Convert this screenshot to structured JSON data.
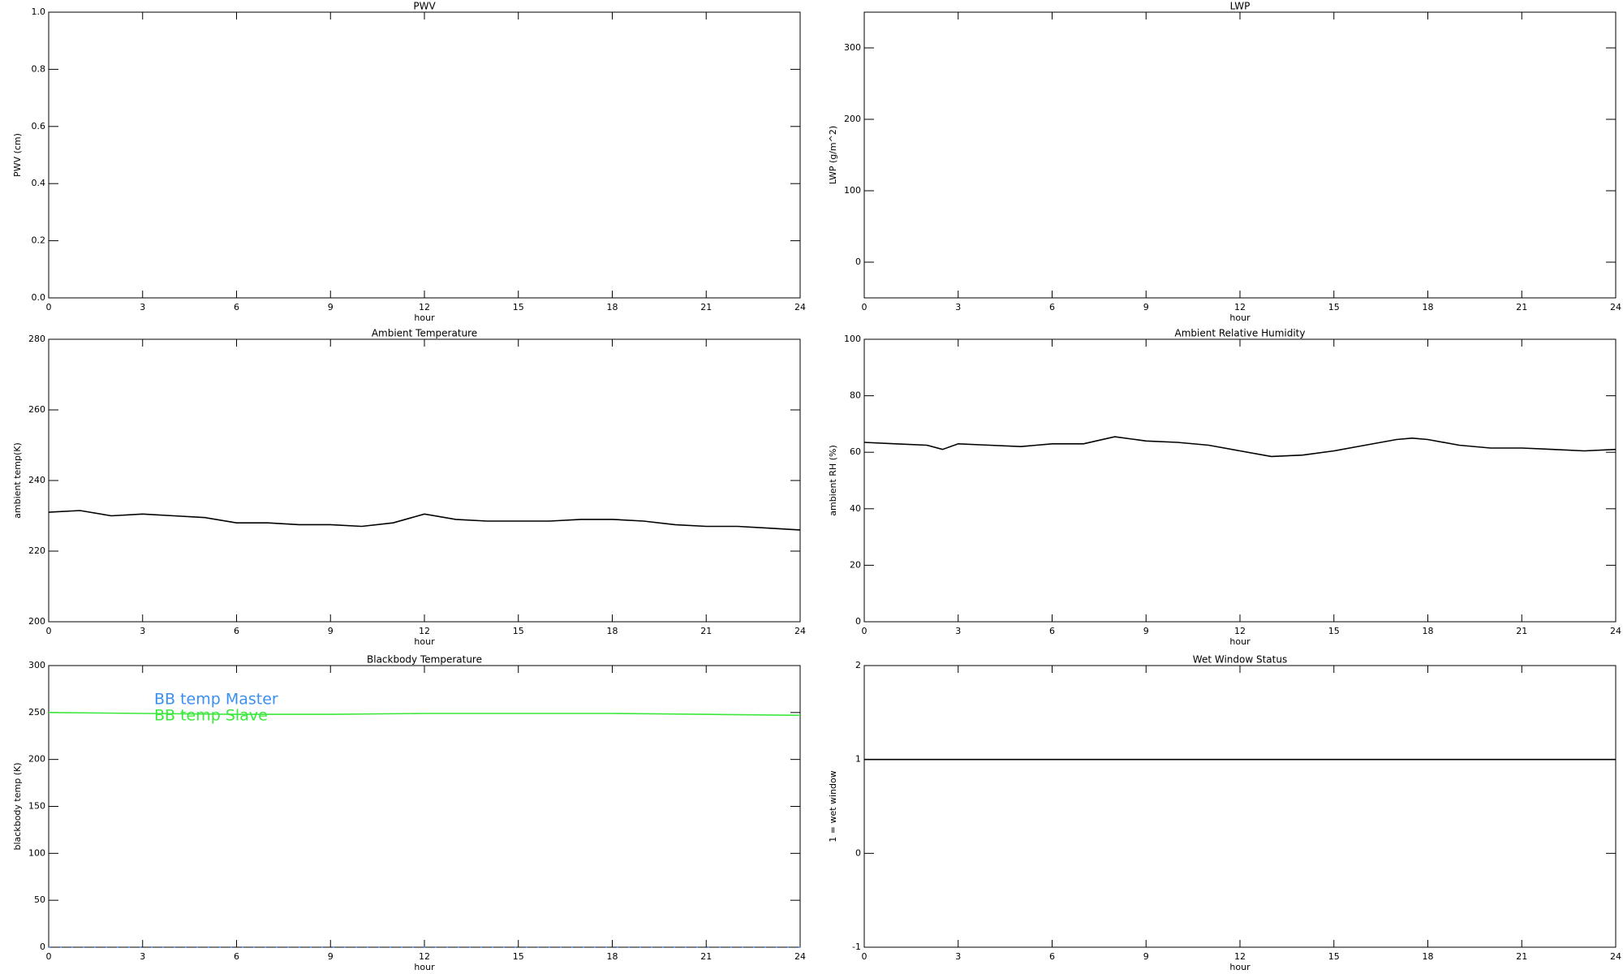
{
  "chart_data": [
    {
      "type": "line",
      "title": "PWV",
      "xlabel": "hour",
      "ylabel": "PWV (cm)",
      "xlim": [
        0,
        24
      ],
      "xticks": [
        0,
        3,
        6,
        9,
        12,
        15,
        18,
        21,
        24
      ],
      "ylim": [
        0,
        1
      ],
      "yticks": [
        {
          "value": 0,
          "label": "0.0"
        },
        0.2,
        0.4,
        0.6,
        0.8,
        {
          "value": 1,
          "label": "1.0"
        }
      ],
      "series": []
    },
    {
      "type": "line",
      "title": "LWP",
      "xlabel": "hour",
      "ylabel": "LWP (g/m^2)",
      "xlim": [
        0,
        24
      ],
      "xticks": [
        0,
        3,
        6,
        9,
        12,
        15,
        18,
        21,
        24
      ],
      "ylim": [
        -50,
        350
      ],
      "yticks": [
        0,
        100,
        200,
        300
      ],
      "series": []
    },
    {
      "type": "line",
      "title": "Ambient Temperature",
      "xlabel": "hour",
      "ylabel": "ambient temp(K)",
      "xlim": [
        0,
        24
      ],
      "xticks": [
        0,
        3,
        6,
        9,
        12,
        15,
        18,
        21,
        24
      ],
      "ylim": [
        200,
        280
      ],
      "yticks": [
        200,
        220,
        240,
        260,
        280
      ],
      "series": [
        {
          "color": "#000000",
          "x": [
            0,
            1,
            2,
            3,
            4,
            5,
            6,
            7,
            8,
            9,
            10,
            11,
            12,
            13,
            14,
            15,
            16,
            17,
            18,
            19,
            20,
            21,
            22,
            23,
            24
          ],
          "values": [
            231,
            231.5,
            230,
            230.5,
            230,
            229.5,
            228,
            228,
            227.5,
            227.5,
            227,
            228,
            230.5,
            229,
            228.5,
            228.5,
            228.5,
            229,
            229,
            228.5,
            227.5,
            227,
            227,
            226.5,
            226
          ]
        }
      ]
    },
    {
      "type": "line",
      "title": "Ambient Relative Humidity",
      "xlabel": "hour",
      "ylabel": "ambient RH (%)",
      "xlim": [
        0,
        24
      ],
      "xticks": [
        0,
        3,
        6,
        9,
        12,
        15,
        18,
        21,
        24
      ],
      "ylim": [
        0,
        100
      ],
      "yticks": [
        0,
        20,
        40,
        60,
        80,
        100
      ],
      "series": [
        {
          "color": "#000000",
          "x": [
            0,
            1,
            2,
            2.5,
            3,
            4,
            5,
            6,
            7,
            8,
            9,
            10,
            11,
            12,
            13,
            14,
            15,
            16,
            17,
            17.5,
            18,
            19,
            20,
            21,
            22,
            23,
            24
          ],
          "values": [
            63.5,
            63,
            62.5,
            61,
            63,
            62.5,
            62,
            63,
            63,
            65.5,
            64,
            63.5,
            62.5,
            60.5,
            58.5,
            59,
            60.5,
            62.5,
            64.5,
            65,
            64.5,
            62.5,
            61.5,
            61.5,
            61,
            60.5,
            61
          ]
        }
      ]
    },
    {
      "type": "line",
      "title": "Blackbody Temperature",
      "xlabel": "hour",
      "ylabel": "blackbody temp (K)",
      "xlim": [
        0,
        24
      ],
      "xticks": [
        0,
        3,
        6,
        9,
        12,
        15,
        18,
        21,
        24
      ],
      "ylim": [
        0,
        300
      ],
      "yticks": [
        0,
        50,
        100,
        150,
        200,
        250,
        300
      ],
      "legend": "upper left",
      "series": [
        {
          "name": "BB temp Master",
          "color": "#3b8ff0",
          "dash": true,
          "x": [
            0,
            24
          ],
          "values": [
            0,
            0
          ]
        },
        {
          "name": "BB temp Slave",
          "color": "#3ce83c",
          "x": [
            0,
            3,
            6,
            9,
            12,
            15,
            18,
            21,
            24
          ],
          "values": [
            250,
            249,
            248,
            248,
            249,
            249,
            249,
            248,
            247
          ]
        }
      ]
    },
    {
      "type": "line",
      "title": "Wet Window Status",
      "xlabel": "hour",
      "ylabel": "1 = wet window",
      "xlim": [
        0,
        24
      ],
      "xticks": [
        0,
        3,
        6,
        9,
        12,
        15,
        18,
        21,
        24
      ],
      "ylim": [
        -1,
        2
      ],
      "yticks": [
        -1,
        0,
        1,
        2
      ],
      "series": [
        {
          "color": "#000000",
          "x": [
            0,
            24
          ],
          "values": [
            1,
            1
          ]
        }
      ]
    }
  ]
}
